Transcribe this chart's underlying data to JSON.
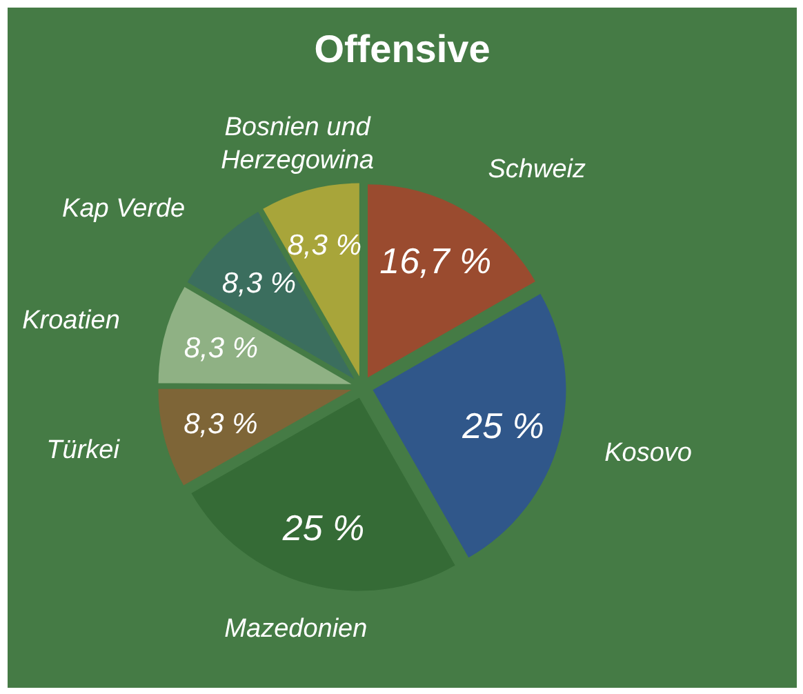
{
  "chart_data": {
    "type": "pie",
    "title": "Offensive",
    "categories": [
      "Schweiz",
      "Kosovo",
      "Mazedonien",
      "Türkei",
      "Kroatien",
      "Kap Verde",
      "Bosnien und Herzegowina"
    ],
    "values": [
      16.7,
      25,
      25,
      8.3,
      8.3,
      8.3,
      8.3
    ],
    "value_labels": [
      "16,7 %",
      "25 %",
      "25 %",
      "8,3 %",
      "8,3 %",
      "8,3 %",
      "8,3 %"
    ],
    "colors": [
      "#9a4b2f",
      "#30578a",
      "#356b36",
      "#7e6537",
      "#8fb184",
      "#3b6e5e",
      "#a8a53a"
    ]
  }
}
